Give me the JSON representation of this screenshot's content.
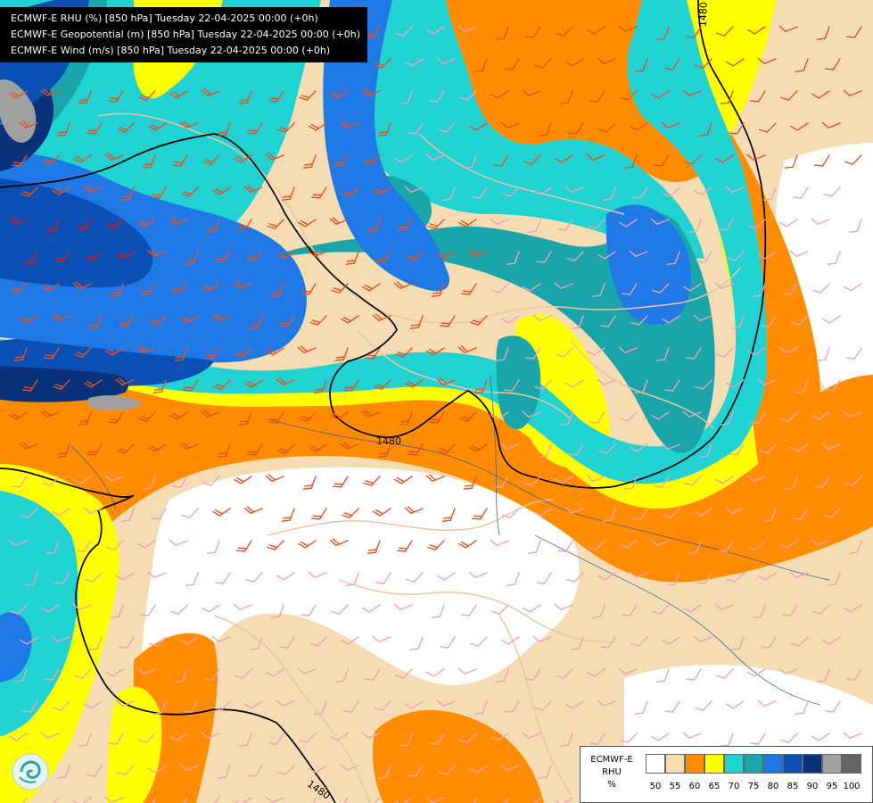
{
  "header": {
    "lines": [
      "ECMWF-E RHU (%) [850 hPa] Tuesday 22-04-2025 00:00 (+0h)",
      "ECMWF-E Geopotential (m) [850 hPa] Tuesday 22-04-2025 00:00 (+0h)",
      "ECMWF-E Wind (m/s) [850 hPa] Tuesday 22-04-2025 00:00 (+0h)"
    ]
  },
  "map": {
    "field": "RHU",
    "level": "850 hPa",
    "contour_labels": [
      "1480",
      "1480",
      "1480"
    ],
    "colors": {
      "background": "#ffffff",
      "geopotential_line": "#000000",
      "borders": "#e8c8a0",
      "rivers": "#2a5aa0",
      "wind_strong": "#e8501e",
      "wind_light": "#f0a0b8",
      "wind_very_strong": "#c81e1e"
    }
  },
  "legend": {
    "label_lines": [
      "ECMWF-E",
      "RHU",
      "%"
    ],
    "colors": [
      "#ffffff",
      "#f5dcb3",
      "#ff8c00",
      "#ffff00",
      "#20d2d2",
      "#19a5aa",
      "#1e78e6",
      "#0a50b4",
      "#0a3278",
      "#a0a0a0",
      "#646464"
    ],
    "ticks": [
      "50",
      "55",
      "60",
      "65",
      "70",
      "75",
      "80",
      "85",
      "90",
      "95",
      "100"
    ]
  },
  "logo": {
    "icon": "ecmwf-logo-icon"
  }
}
